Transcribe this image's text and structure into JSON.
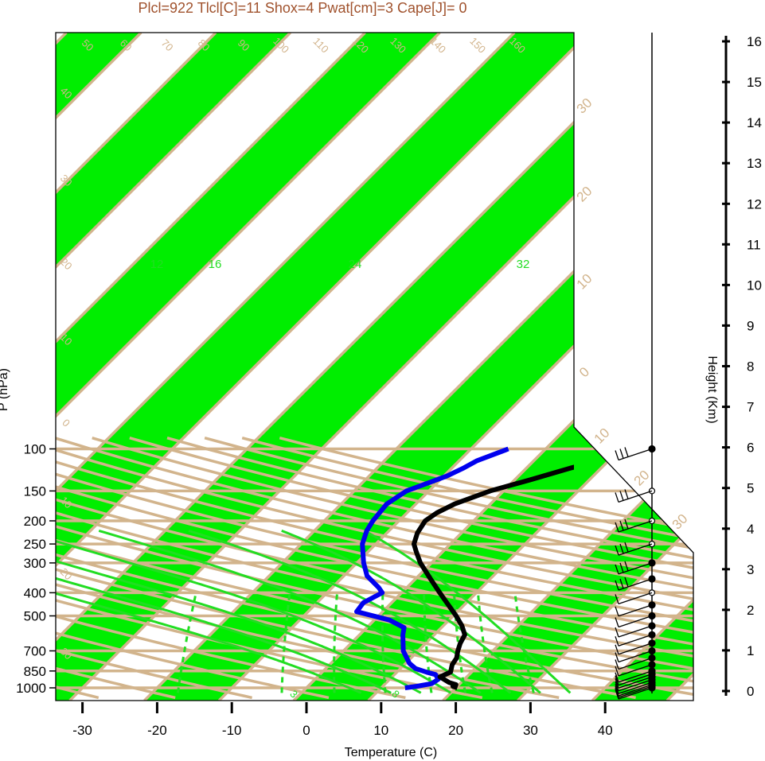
{
  "chart_data": {
    "type": "skew-t",
    "header": "Plcl=922 Tlcl[C]=11 Shox=4 Pwat[cm]=3 Cape[J]= 0",
    "xlabel": "Temperature (C)",
    "ylabel": "P (hPa)",
    "height_label": "Height (Km)",
    "xlim": [
      -34,
      52
    ],
    "ylim_hpa": [
      1050,
      100
    ],
    "pressure_ticks": [
      100,
      150,
      200,
      250,
      300,
      400,
      500,
      700,
      850,
      1000
    ],
    "temperature_ticks": [
      -30,
      -20,
      -10,
      0,
      10,
      20,
      30,
      40
    ],
    "height_ticks_km": [
      0,
      1,
      2,
      3,
      4,
      5,
      6,
      7,
      8,
      9,
      10,
      11,
      12,
      13,
      14,
      15,
      16
    ],
    "dry_adiabat_labels": [
      "30",
      "20",
      "10",
      "0",
      "10",
      "20",
      "30"
    ],
    "isotherm_labels_upper": [
      "50",
      "60",
      "70",
      "80",
      "90",
      "100",
      "110",
      "120",
      "130",
      "140",
      "150",
      "160"
    ],
    "isotherm_labels_left": [
      "40",
      "30",
      "20",
      "10",
      "0",
      "10",
      "20",
      "30"
    ],
    "moist_adiabat_labels": [
      "12",
      "16",
      "24",
      "32"
    ],
    "mixing_ratio_labels": [
      "3",
      "8"
    ],
    "temperature_profile": [
      {
        "p": 1000,
        "t": 20.2
      },
      {
        "p": 985,
        "t": 19.4
      },
      {
        "p": 970,
        "t": 19.6
      },
      {
        "p": 950,
        "t": 18.4
      },
      {
        "p": 900,
        "t": 16.4
      },
      {
        "p": 860,
        "t": 17.2
      },
      {
        "p": 800,
        "t": 16.4
      },
      {
        "p": 750,
        "t": 16.1
      },
      {
        "p": 700,
        "t": 15.3
      },
      {
        "p": 650,
        "t": 14.6
      },
      {
        "p": 600,
        "t": 14.1
      },
      {
        "p": 550,
        "t": 12.5
      },
      {
        "p": 500,
        "t": 10.4
      },
      {
        "p": 450,
        "t": 7.9
      },
      {
        "p": 400,
        "t": 5.1
      },
      {
        "p": 350,
        "t": 2.0
      },
      {
        "p": 300,
        "t": -1.5
      },
      {
        "p": 270,
        "t": -3.5
      },
      {
        "p": 250,
        "t": -4.9
      },
      {
        "p": 225,
        "t": -5.9
      },
      {
        "p": 200,
        "t": -6.5
      },
      {
        "p": 185,
        "t": -6.0
      },
      {
        "p": 170,
        "t": -4.8
      },
      {
        "p": 150,
        "t": -1.8
      },
      {
        "p": 135,
        "t": 2.0
      },
      {
        "p": 120,
        "t": 6.0
      },
      {
        "p": 110,
        "t": 9.5
      },
      {
        "p": 100,
        "t": 17.0
      }
    ],
    "dewpoint_profile": [
      {
        "p": 1000,
        "t": 13.2
      },
      {
        "p": 985,
        "t": 14.6
      },
      {
        "p": 960,
        "t": 16.2
      },
      {
        "p": 920,
        "t": 16.5
      },
      {
        "p": 880,
        "t": 15.5
      },
      {
        "p": 860,
        "t": 14.0
      },
      {
        "p": 830,
        "t": 12.0
      },
      {
        "p": 790,
        "t": 10.5
      },
      {
        "p": 700,
        "t": 8.0
      },
      {
        "p": 600,
        "t": 5.8
      },
      {
        "p": 560,
        "t": 5.0
      },
      {
        "p": 520,
        "t": 2.0
      },
      {
        "p": 480,
        "t": -3.5
      },
      {
        "p": 440,
        "t": -3.8
      },
      {
        "p": 400,
        "t": -2.6
      },
      {
        "p": 380,
        "t": -3.8
      },
      {
        "p": 340,
        "t": -6.9
      },
      {
        "p": 300,
        "t": -9.1
      },
      {
        "p": 250,
        "t": -11.8
      },
      {
        "p": 220,
        "t": -13.0
      },
      {
        "p": 200,
        "t": -13.5
      },
      {
        "p": 170,
        "t": -13.9
      },
      {
        "p": 150,
        "t": -13.0
      },
      {
        "p": 130,
        "t": -9.6
      },
      {
        "p": 120,
        "t": -8.4
      },
      {
        "p": 112,
        "t": -7.6
      },
      {
        "p": 100,
        "t": -5.0
      }
    ],
    "wind_levels_hpa": [
      1000,
      985,
      970,
      950,
      925,
      900,
      875,
      850,
      800,
      750,
      700,
      650,
      600,
      550,
      500,
      450,
      400,
      350,
      300,
      250,
      200,
      150,
      100
    ],
    "colors": {
      "band_fill": "#00ee00",
      "grid_line": "#d2b48c",
      "moist_adiabat": "#22dd22",
      "temperature": "#000000",
      "dewpoint": "#0000ee",
      "header_text": "#a0522d"
    }
  }
}
